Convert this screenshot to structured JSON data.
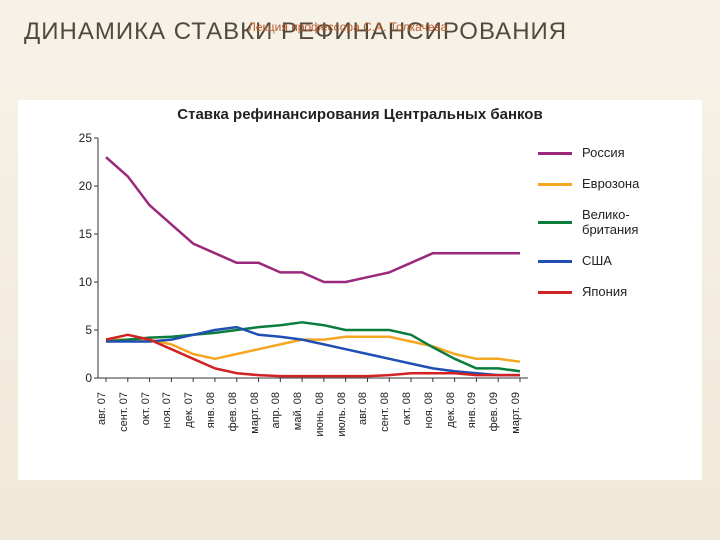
{
  "slide": {
    "title": "ДИНАМИКА СТАВКИ РЕФИНАНСИРОВАНИЯ",
    "attribution": "Лекция профессора С.А. Толкачева",
    "background_gradient": [
      "#f7f2e8",
      "#f0e8d8"
    ],
    "title_color": "#52493a",
    "attribution_color": "#b85c2e",
    "title_fontsize": 24,
    "attribution_fontsize": 12
  },
  "chart": {
    "type": "line",
    "title": "Ставка рефинансирования Центральных банков",
    "title_fontsize": 15,
    "background_color": "#ffffff",
    "ylim": [
      0,
      25
    ],
    "ytick_step": 5,
    "yticks": [
      0,
      5,
      10,
      15,
      20,
      25
    ],
    "categories": [
      "авг. 07",
      "сент. 07",
      "окт. 07",
      "ноя. 07",
      "дек. 07",
      "янв. 08",
      "фев. 08",
      "март. 08",
      "апр. 08",
      "май. 08",
      "июнь. 08",
      "июль. 08",
      "авг. 08",
      "сент. 08",
      "окт. 08",
      "ноя. 08",
      "дек. 08",
      "янв. 09",
      "фев. 09",
      "март. 09"
    ],
    "tick_fontsize": 12,
    "xlabel_fontsize": 11,
    "xlabel_rotation_deg": -90,
    "line_width": 2.5,
    "series": [
      {
        "name": "Россия",
        "color": "#9b287b",
        "values": [
          23,
          21,
          18,
          16,
          14,
          13,
          12,
          12,
          11,
          11,
          10,
          10,
          10.5,
          11,
          12,
          13,
          13,
          13,
          13,
          13
        ]
      },
      {
        "name": "Еврозона",
        "color": "#f5a623",
        "values": [
          4,
          4,
          4,
          3.5,
          2.5,
          2,
          2.5,
          3,
          3.5,
          4,
          4,
          4.3,
          4.3,
          4.3,
          3.8,
          3.3,
          2.5,
          2,
          2,
          1.7
        ]
      },
      {
        "name": "Велико-\nбритания",
        "color": "#0a7d3c",
        "values": [
          3.8,
          4,
          4.2,
          4.3,
          4.5,
          4.7,
          5,
          5.3,
          5.5,
          5.8,
          5.5,
          5,
          5,
          5,
          4.5,
          3.2,
          2,
          1,
          1,
          0.7
        ]
      },
      {
        "name": "США",
        "color": "#1f4fb2",
        "values": [
          3.8,
          3.8,
          3.8,
          4,
          4.5,
          5,
          5.3,
          4.5,
          4.3,
          4,
          3.5,
          3,
          2.5,
          2,
          1.5,
          1,
          0.7,
          0.5,
          0.3,
          0.3
        ]
      },
      {
        "name": "Япония",
        "color": "#d12224",
        "values": [
          4.0,
          4.5,
          4.0,
          3.0,
          2.0,
          1.0,
          0.5,
          0.3,
          0.2,
          0.2,
          0.2,
          0.2,
          0.2,
          0.3,
          0.5,
          0.5,
          0.5,
          0.3,
          0.3,
          0.3
        ]
      }
    ],
    "legend": {
      "position": "right",
      "swatch_width": 34,
      "swatch_height": 3,
      "label_fontsize": 13,
      "row_gap": 16
    },
    "axis_color": "#333333"
  }
}
